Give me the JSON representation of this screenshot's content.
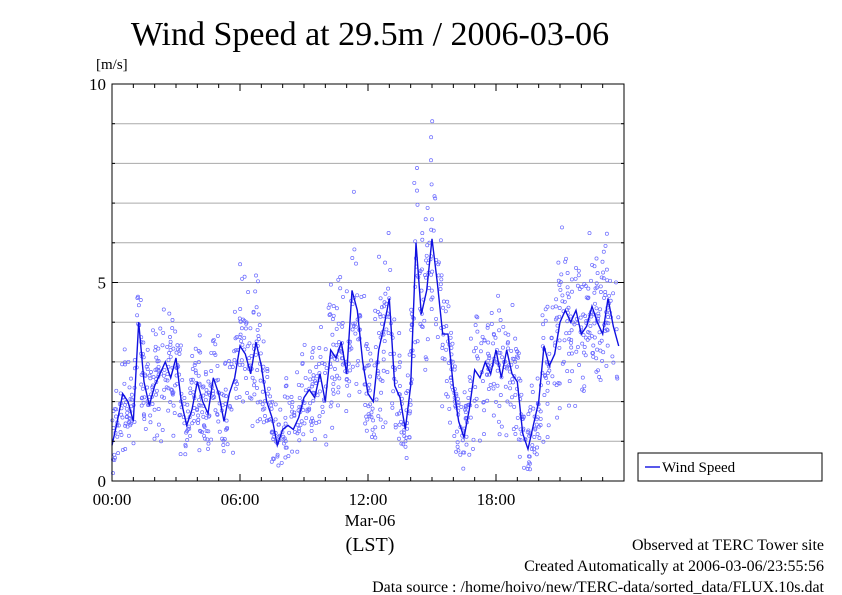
{
  "chart_data": {
    "type": "line",
    "title": "Wind Speed at 29.5m / 2006-03-06",
    "ylabel": "[m/s]",
    "ylim": [
      0,
      10
    ],
    "yticks": [
      {
        "value": 0,
        "label": "0"
      },
      {
        "value": 5,
        "label": "5"
      },
      {
        "value": 10,
        "label": "10"
      }
    ],
    "ygrid": [
      1,
      2,
      3,
      4,
      5,
      6,
      7,
      8,
      9
    ],
    "xlim": [
      0,
      24
    ],
    "xticks": [
      {
        "value": 0,
        "label": "00:00"
      },
      {
        "value": 6,
        "label": "06:00"
      },
      {
        "value": 12,
        "label": "12:00"
      },
      {
        "value": 18,
        "label": "18:00"
      }
    ],
    "xdate_label": "Mar-06",
    "xunit_label": "(LST)",
    "grid": true,
    "legend_position": "right-bottom",
    "series": [
      {
        "name": "Wind Speed",
        "color": "#0000ff",
        "x": [
          0.0,
          0.25,
          0.5,
          0.75,
          1.0,
          1.25,
          1.5,
          1.75,
          2.0,
          2.25,
          2.5,
          2.75,
          3.0,
          3.25,
          3.5,
          3.75,
          4.0,
          4.25,
          4.5,
          4.75,
          5.0,
          5.25,
          5.5,
          5.75,
          6.0,
          6.25,
          6.5,
          6.75,
          7.0,
          7.25,
          7.5,
          7.75,
          8.0,
          8.25,
          8.5,
          8.75,
          9.0,
          9.25,
          9.5,
          9.75,
          10.0,
          10.25,
          10.5,
          10.75,
          11.0,
          11.25,
          11.5,
          11.75,
          12.0,
          12.25,
          12.5,
          12.75,
          13.0,
          13.25,
          13.5,
          13.75,
          14.0,
          14.25,
          14.5,
          14.75,
          15.0,
          15.25,
          15.5,
          15.75,
          16.0,
          16.25,
          16.5,
          16.75,
          17.0,
          17.25,
          17.5,
          17.75,
          18.0,
          18.25,
          18.5,
          18.75,
          19.0,
          19.25,
          19.5,
          19.75,
          20.0,
          20.25,
          20.5,
          20.75,
          21.0,
          21.25,
          21.5,
          21.75,
          22.0,
          22.25,
          22.5,
          22.75,
          23.0,
          23.25,
          23.5,
          23.75
        ],
        "values": [
          0.9,
          1.5,
          2.2,
          2.0,
          1.5,
          4.0,
          2.5,
          1.9,
          2.4,
          2.7,
          3.0,
          2.6,
          3.1,
          2.0,
          1.4,
          1.8,
          2.5,
          2.0,
          1.7,
          2.6,
          2.2,
          1.5,
          2.2,
          2.6,
          3.4,
          3.2,
          2.7,
          3.5,
          2.9,
          2.0,
          1.6,
          0.9,
          1.3,
          1.4,
          1.3,
          1.6,
          2.1,
          2.3,
          2.1,
          2.7,
          2.0,
          3.3,
          3.1,
          3.5,
          2.7,
          4.8,
          4.3,
          3.0,
          2.2,
          2.0,
          3.3,
          3.9,
          4.6,
          2.4,
          2.1,
          1.3,
          2.4,
          6.0,
          4.2,
          4.8,
          6.1,
          5.0,
          3.7,
          3.7,
          2.4,
          1.5,
          1.1,
          1.8,
          2.8,
          2.6,
          3.0,
          2.7,
          3.3,
          2.6,
          3.3,
          2.7,
          2.5,
          1.2,
          0.8,
          1.4,
          2.0,
          3.4,
          2.9,
          3.2,
          4.0,
          4.3,
          4.0,
          4.3,
          3.7,
          3.9,
          4.4,
          4.0,
          3.7,
          4.6,
          3.9,
          3.4
        ]
      }
    ]
  },
  "footer": {
    "line1": "Observed at TERC Tower site",
    "line2": "Created Automatically at 2006-03-06/23:55:56",
    "line3": "Data source : /home/hoivo/new/TERC-data/sorted_data/FLUX.10s.dat"
  }
}
